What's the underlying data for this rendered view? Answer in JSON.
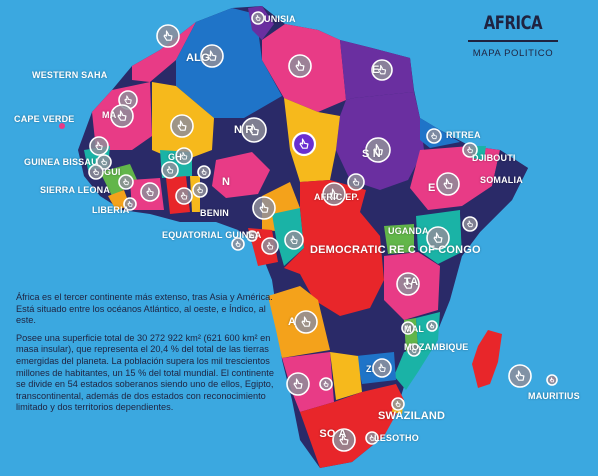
{
  "title": "AFRICA",
  "subtitle": "MAPA POLITICO",
  "description": [
    "África es el tercer continente más extenso, tras Asia y América. Está situado entre los océanos Atlántico, al oeste, e Índico, al este.",
    "Posee una superficie total de 30 272 922 km² (621 600 km² en masa insular), que representa el 20,4 % del total de las tierras emergidas del planeta. La población supera los mil trescientos millones de habitantes, un 15 % del total mundial. El continente se divide en 54 estados soberanos siendo uno de ellos, Egipto, transcontinental, además de dos estados con reconocimiento limitado y dos territorios dependientes."
  ],
  "labels": {
    "tunisia": "UNISIA",
    "algeria": "ALG",
    "egypt": "E",
    "western_sahara": "WESTERN SAHA",
    "mauritania": "MA",
    "cape_verde": "CAPE VERDE",
    "niger": "N R",
    "sudan": "S N",
    "eritrea": "RITREA",
    "djibouti": "DJIBOUTI",
    "somalia": "SOMALIA",
    "guinea_bissau": "GUINEA BISSAU",
    "sierra_leone": "SIERRA LEONA",
    "liberia": "LIBERIA",
    "guinea": "GUI",
    "ghana": "GH",
    "nigeria": "N",
    "benin": "BENIN",
    "car": "AFRIC EP.",
    "ethiopia": "E",
    "uganda": "UGANDA",
    "equatorial_guinea": "EQUATORIAL GUINEA",
    "drc": "DEMOCRATIC RE C OF CONGO",
    "tanzania": "TA",
    "angola": "A",
    "malawi": "MAL",
    "mozambique": "MOZAMBIQUE",
    "zimbabwe": "ZI",
    "mauritius": "MAURITIUS",
    "swaziland": "SWAZILAND",
    "lesotho": "LESOTHO",
    "south_africa": "SO A"
  },
  "colors": {
    "ocean": "#3ba8e0",
    "navy": "#2a2a68",
    "purple": "#6a2fa0",
    "blue": "#1f74c8",
    "pink": "#e83b86",
    "red": "#e8262a",
    "orange": "#f4a21b",
    "yellow": "#f6b91c",
    "teal": "#1ab3a6",
    "green": "#62b64a",
    "pin_fill": "#8e8e9a",
    "active_pin": "#6a2fd0",
    "title_ink": "#1f2340"
  },
  "pins": [
    {
      "icon": "tap-icon",
      "active": false
    },
    {
      "icon": "tap-icon",
      "active": false
    },
    {
      "icon": "tap-icon",
      "active": false
    },
    {
      "icon": "tap-icon",
      "active": false
    },
    {
      "icon": "tap-icon",
      "active": false
    },
    {
      "icon": "tap-icon",
      "active": false
    },
    {
      "icon": "tap-icon",
      "active": false
    },
    {
      "icon": "tap-icon",
      "active": false
    },
    {
      "icon": "tap-icon",
      "active": false
    },
    {
      "icon": "tap-icon",
      "active": true
    },
    {
      "icon": "tap-icon",
      "active": false
    },
    {
      "icon": "tap-icon",
      "active": false
    },
    {
      "icon": "tap-icon",
      "active": false
    },
    {
      "icon": "tap-icon",
      "active": false
    },
    {
      "icon": "tap-icon",
      "active": false
    },
    {
      "icon": "tap-icon",
      "active": false
    },
    {
      "icon": "tap-icon",
      "active": false
    },
    {
      "icon": "tap-icon",
      "active": false
    },
    {
      "icon": "tap-icon",
      "active": false
    },
    {
      "icon": "tap-icon",
      "active": false
    },
    {
      "icon": "tap-icon",
      "active": false
    },
    {
      "icon": "tap-icon",
      "active": false
    },
    {
      "icon": "tap-icon",
      "active": false
    },
    {
      "icon": "tap-icon",
      "active": false
    },
    {
      "icon": "tap-icon",
      "active": false
    },
    {
      "icon": "tap-icon",
      "active": false
    },
    {
      "icon": "tap-icon",
      "active": false
    },
    {
      "icon": "tap-icon",
      "active": false
    },
    {
      "icon": "tap-icon",
      "active": false
    },
    {
      "icon": "tap-icon",
      "active": false
    },
    {
      "icon": "tap-icon",
      "active": false
    },
    {
      "icon": "tap-icon",
      "active": false
    },
    {
      "icon": "tap-icon",
      "active": false
    },
    {
      "icon": "tap-icon",
      "active": false
    },
    {
      "icon": "tap-icon",
      "active": false
    },
    {
      "icon": "tap-icon",
      "active": false
    },
    {
      "icon": "tap-icon",
      "active": false
    },
    {
      "icon": "tap-icon",
      "active": false
    },
    {
      "icon": "tap-icon",
      "active": false
    },
    {
      "icon": "tap-icon",
      "active": false
    },
    {
      "icon": "tap-icon",
      "active": false
    },
    {
      "icon": "tap-icon",
      "active": false
    },
    {
      "icon": "tap-icon",
      "active": false
    },
    {
      "icon": "tap-icon",
      "active": false
    },
    {
      "icon": "tap-icon",
      "active": false
    },
    {
      "icon": "tap-icon",
      "active": false
    },
    {
      "icon": "tap-icon",
      "active": false
    }
  ]
}
